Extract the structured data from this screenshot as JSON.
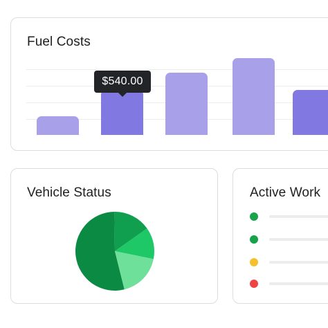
{
  "fuel_costs": {
    "title": "Fuel Costs",
    "tooltip_value": "$540.00",
    "colors": {
      "bar_light": "#a8a1ea",
      "bar_dark": "#8179e1"
    }
  },
  "chart_data": {
    "type": "bar",
    "title": "Fuel Costs",
    "values": [
      225,
      540,
      750,
      925,
      540
    ],
    "ylim": [
      0,
      1000
    ],
    "grid": true,
    "highlighted_value": "$540.00"
  },
  "vehicle_status": {
    "title": "Vehicle Status",
    "pie": {
      "shares": [
        0.537,
        0.154,
        0.13,
        0.179
      ],
      "colors": [
        "#0a8a43",
        "#109f4f",
        "#1fc866",
        "#6ee09a"
      ]
    }
  },
  "active_work": {
    "title": "Active Work",
    "items": [
      {
        "status_color": "#16a34a",
        "icon": "green-status-dot"
      },
      {
        "status_color": "#16a34a",
        "icon": "green-status-dot"
      },
      {
        "status_color": "#f5c02c",
        "icon": "yellow-status-dot"
      },
      {
        "status_color": "#ef4444",
        "icon": "red-status-dot"
      }
    ]
  }
}
